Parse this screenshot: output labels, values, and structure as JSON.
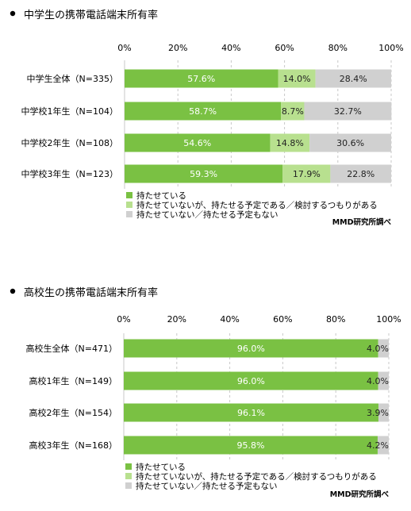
{
  "chart_data": [
    {
      "type": "bar",
      "stacked": true,
      "orientation": "horizontal",
      "title": "中学生の携帯電話端末所有率",
      "xlim": [
        0,
        100
      ],
      "ticks": [
        "0%",
        "20%",
        "40%",
        "60%",
        "80%",
        "100%"
      ],
      "grid": true,
      "legend_position": "bottom-left",
      "source": "MMD研究所調べ",
      "categories": [
        "中学生全体（N=335）",
        "中学校1年生（N=104）",
        "中学校2年生（N=108）",
        "中学校3年生（N=123）"
      ],
      "series": [
        {
          "name": "持たせている",
          "color": "#7AC143",
          "values": [
            57.6,
            58.7,
            54.6,
            59.3
          ],
          "labels": [
            "57.6%",
            "58.7%",
            "54.6%",
            "59.3%"
          ]
        },
        {
          "name": "持たせていないが、持たせる予定である／検討するつもりがある",
          "color": "#B8E08F",
          "values": [
            14.0,
            8.7,
            14.8,
            17.9
          ],
          "labels": [
            "14.0%",
            "8.7%",
            "14.8%",
            "17.9%"
          ]
        },
        {
          "name": "持たせていない／持たせる予定もない",
          "color": "#D0D0D0",
          "values": [
            28.4,
            32.7,
            30.6,
            22.8
          ],
          "labels": [
            "28.4%",
            "32.7%",
            "30.6%",
            "22.8%"
          ]
        }
      ]
    },
    {
      "type": "bar",
      "stacked": true,
      "orientation": "horizontal",
      "title": "高校生の携帯電話端末所有率",
      "xlim": [
        0,
        100
      ],
      "ticks": [
        "0%",
        "20%",
        "40%",
        "60%",
        "80%",
        "100%"
      ],
      "grid": true,
      "legend_position": "bottom-left",
      "source": "MMD研究所調べ",
      "categories": [
        "高校生全体（N=471）",
        "高校1年生（N=149）",
        "高校2年生（N=154）",
        "高校3年生（N=168）"
      ],
      "series": [
        {
          "name": "持たせている",
          "color": "#7AC143",
          "values": [
            96.0,
            96.0,
            96.1,
            95.8
          ],
          "labels": [
            "96.0%",
            "96.0%",
            "96.1%",
            "95.8%"
          ]
        },
        {
          "name": "持たせていないが、持たせる予定である／検討するつもりがある",
          "color": "#B8E08F",
          "values": [
            0,
            0,
            0,
            0
          ],
          "labels": [
            "",
            "",
            "",
            ""
          ]
        },
        {
          "name": "持たせていない／持たせる予定もない",
          "color": "#D0D0D0",
          "values": [
            4.0,
            4.0,
            3.9,
            4.2
          ],
          "labels": [
            "4.0%",
            "4.0%",
            "3.9%",
            "4.2%"
          ]
        }
      ]
    }
  ]
}
